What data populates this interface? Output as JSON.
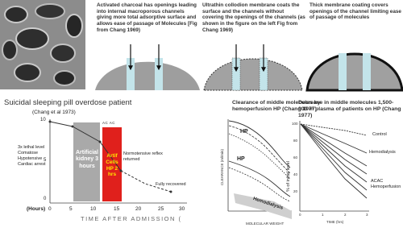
{
  "top_panels": [
    {
      "caption": "Activated charcoal has openings leading into internal macroporous channels giving more total adsorptive surface and allows ease of passage of Molecules [Fig from Chang 1969)"
    },
    {
      "caption": "Ultrathin collodion membrane coats the surface and the channels without covering the openings of the channels (as shown in the figure on the left Fig from Chang 1969)"
    },
    {
      "caption": "Thick membrane coating covers openings of the channel limiting ease of passage of molecules"
    }
  ],
  "patient_figure": {
    "title": "Suicidal sleeping pill overdose patient",
    "citation": "(Chang et al 1973)",
    "y_ticks": [
      "10",
      "5",
      "0"
    ],
    "x_unit": "(Hours)",
    "x_ticks": [
      "0",
      "5",
      "10",
      "15",
      "20",
      "25",
      "30"
    ],
    "x_label": "TIME AFTER ADMISSION (",
    "notes": [
      "3x lethal level",
      "Comatose",
      "Hypotensive",
      "Cardiac arrest"
    ],
    "kidney_label": "Artificial kidney 3 hours",
    "cells_label": "Artif Cells HP 2 hrs",
    "acac": "AC AC",
    "normotensive": "Normotensive reflex returned",
    "recovered": "Fully recovered"
  },
  "clearance_figure": {
    "title": "Clearance of middle molecules by hemoperfusion HP (Chang 1977)",
    "hp_labels": [
      "HP",
      "HP"
    ],
    "hemodialysis": "Hemodialysis",
    "y_label": "CLEARANCE (ml/min)",
    "x_label": "MOLECULAR WEIGHT"
  },
  "decrease_figure": {
    "title": "Decrease in middle molecules 1,500-300 in plasma of patients on HP (Chang 1977)",
    "y_ticks": [
      "100",
      "80",
      "60",
      "40",
      "20"
    ],
    "y_label": "% of initial level",
    "x_label": "TIME (hrs)",
    "x_ticks": [
      "0",
      "1",
      "2",
      "3"
    ],
    "series_labels": [
      "Control",
      "Hemodialysis",
      "ACAC Hemoperfusion"
    ]
  }
}
